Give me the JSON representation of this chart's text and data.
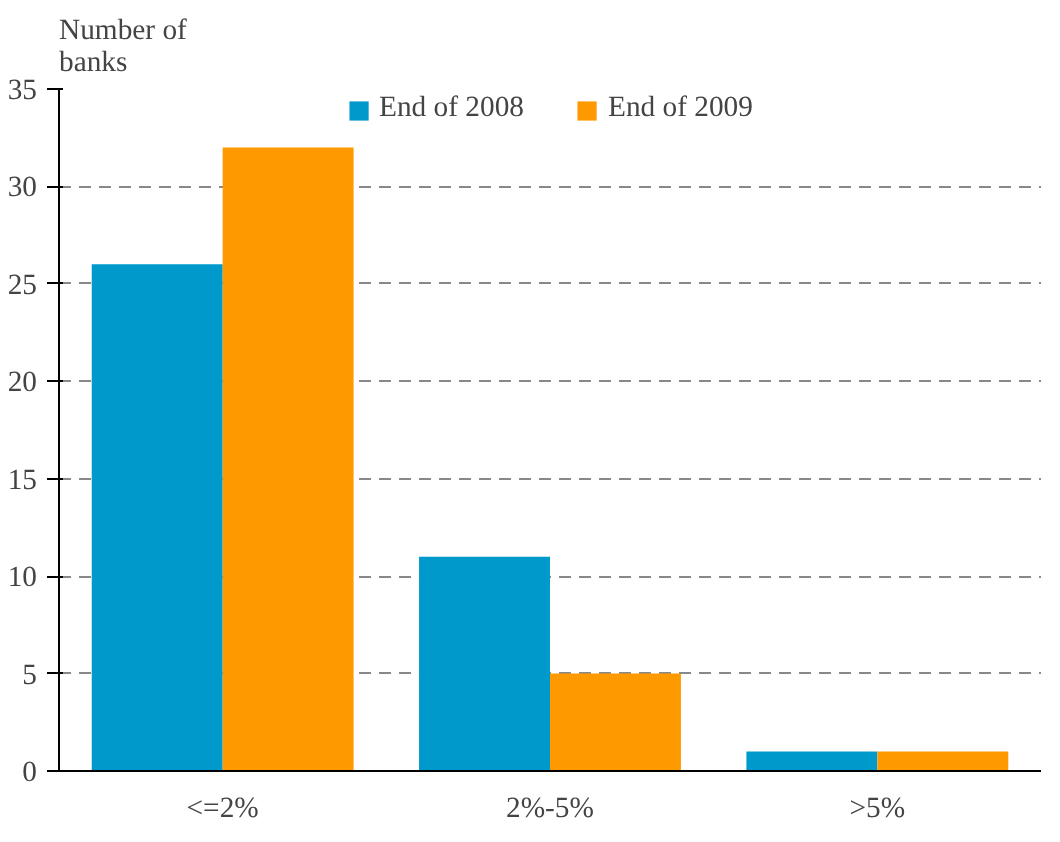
{
  "chart_data": {
    "type": "bar",
    "ylabel": "Number of\nbanks",
    "categories": [
      "<=2%",
      "2%-5%",
      ">5%"
    ],
    "series": [
      {
        "name": "End of 2008",
        "color": "#0099cc",
        "values": [
          26,
          11,
          1
        ]
      },
      {
        "name": "End of 2009",
        "color": "#ff9900",
        "values": [
          32,
          5,
          1
        ]
      }
    ],
    "ylim": [
      0,
      35
    ],
    "yticks": [
      0,
      5,
      10,
      15,
      20,
      25,
      30,
      35
    ],
    "grid": "y",
    "legend": "top"
  }
}
